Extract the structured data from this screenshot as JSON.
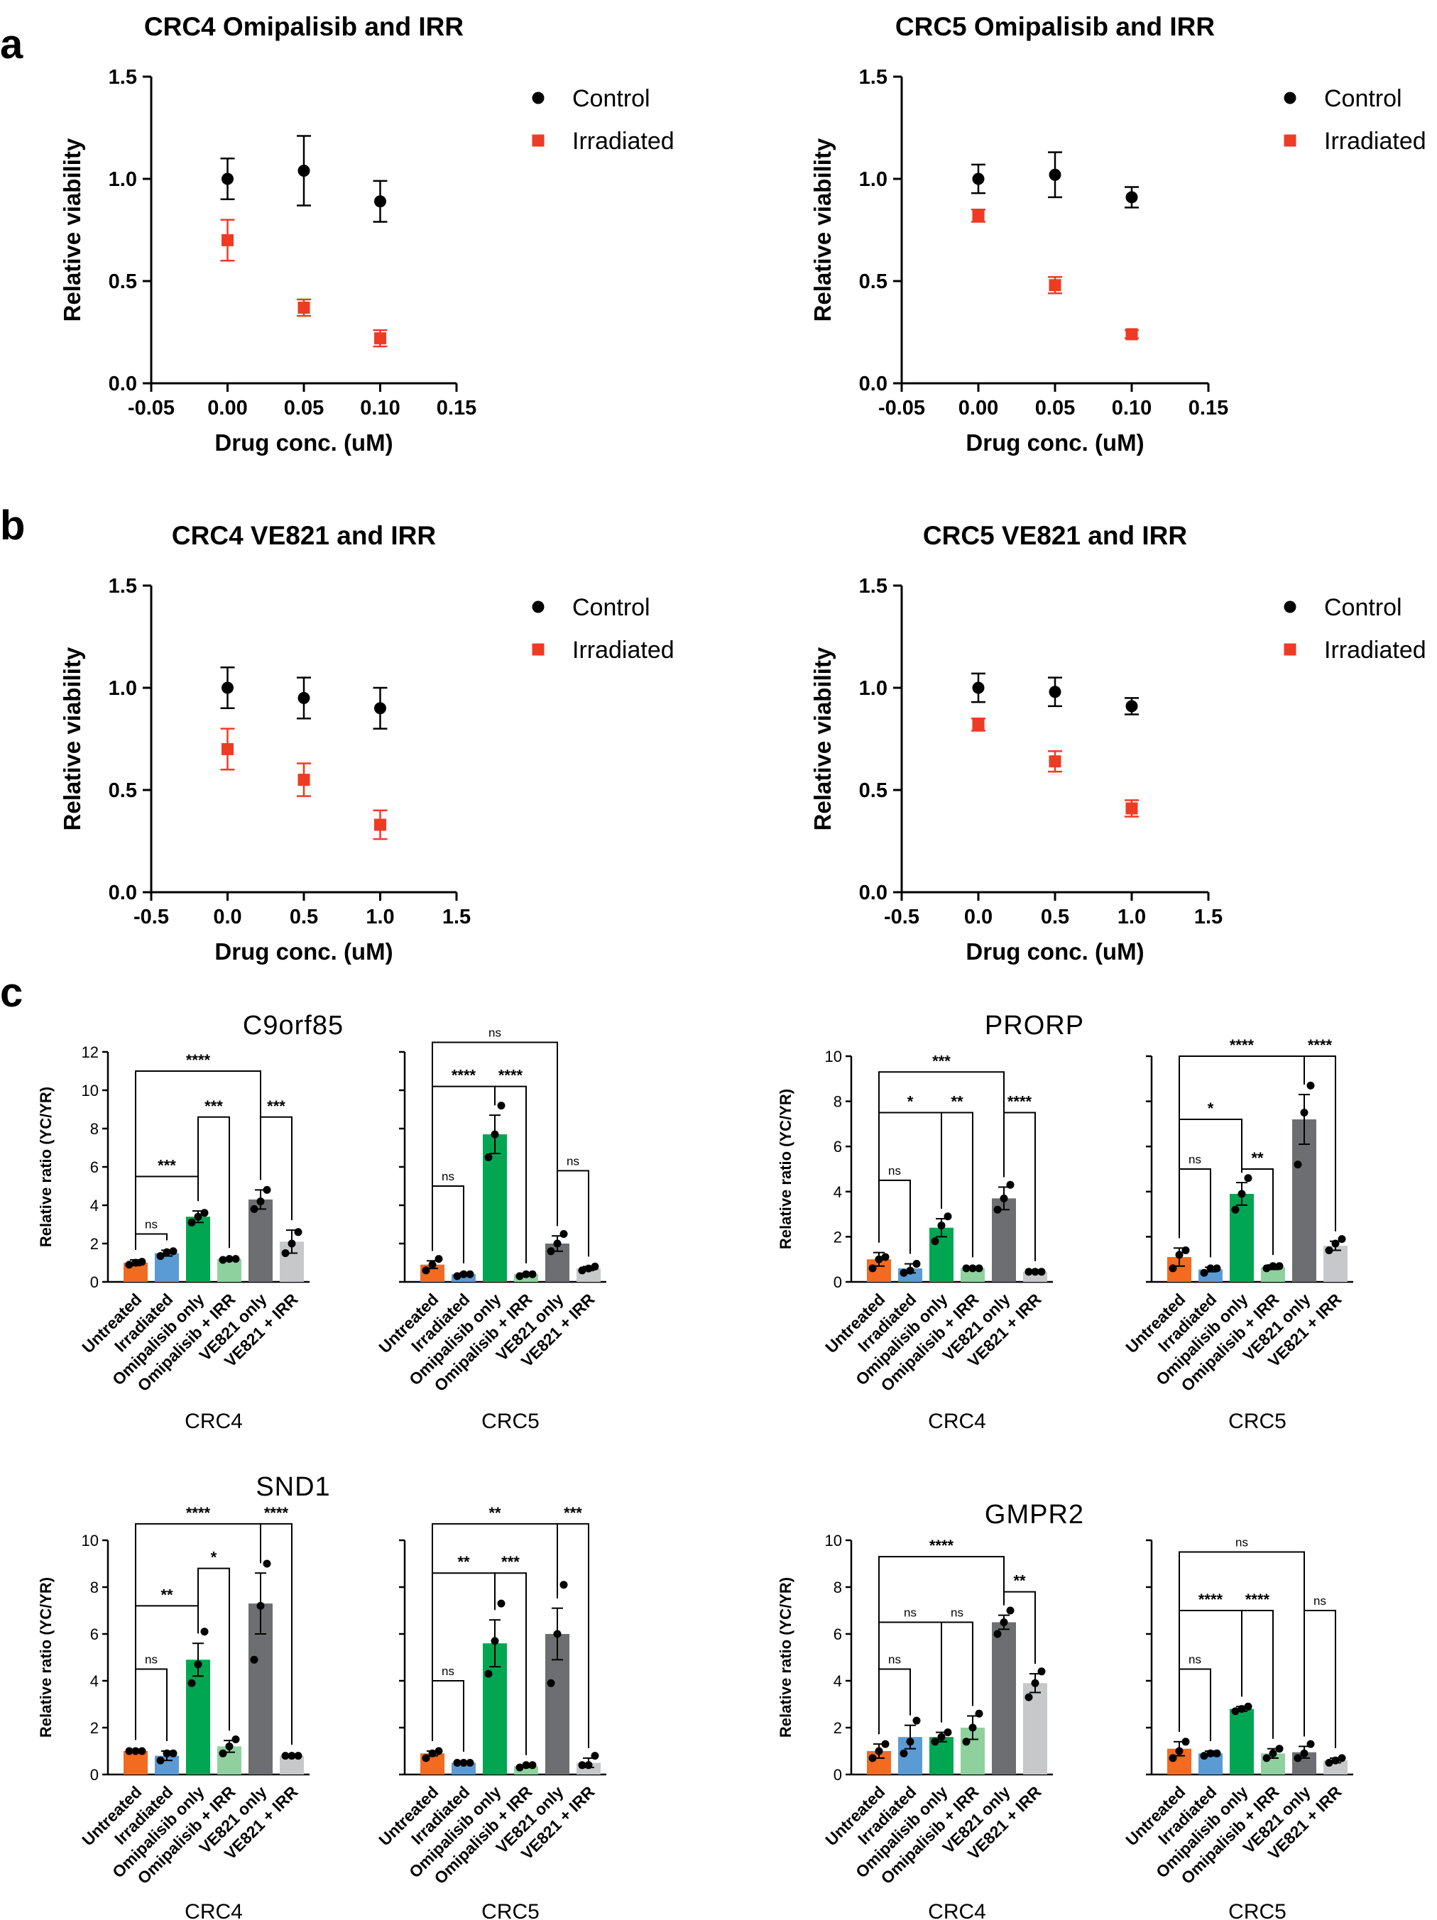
{
  "panel_labels": [
    "a",
    "b",
    "c"
  ],
  "colors": {
    "control": "#000000",
    "irradiated": "#ee3b24",
    "Untreated": "#f26b21",
    "Irradiated": "#5b9bd5",
    "Omipalisib only": "#00a651",
    "Omipalisib + IRR": "#8fd19e",
    "VE821 only": "#6d6e71",
    "VE821 + IRR": "#c7c8ca"
  },
  "chart_data": [
    {
      "id": "crc4-omi",
      "type": "scatter",
      "panel": "a",
      "title": "CRC4 Omipalisib and IRR",
      "xlabel": "Drug conc. (uM)",
      "ylabel": "Relative viability",
      "xlim": [
        -0.05,
        0.15
      ],
      "ylim": [
        0,
        1.5
      ],
      "xticks": [
        "-0.05",
        "0.00",
        "0.05",
        "0.10",
        "0.15"
      ],
      "yticks": [
        "0.0",
        "0.5",
        "1.0",
        "1.5"
      ],
      "legend": "top-right",
      "series": [
        {
          "name": "Control",
          "x": [
            0,
            0.05,
            0.1
          ],
          "y": [
            1.0,
            1.04,
            0.89
          ],
          "err": [
            0.1,
            0.17,
            0.1
          ]
        },
        {
          "name": "Irradiated",
          "x": [
            0,
            0.05,
            0.1
          ],
          "y": [
            0.7,
            0.37,
            0.22
          ],
          "err": [
            0.1,
            0.04,
            0.04
          ]
        }
      ]
    },
    {
      "id": "crc5-omi",
      "type": "scatter",
      "panel": "a",
      "title": "CRC5 Omipalisib and IRR",
      "xlabel": "Drug conc. (uM)",
      "ylabel": "Relative viability",
      "xlim": [
        -0.05,
        0.15
      ],
      "ylim": [
        0,
        1.5
      ],
      "xticks": [
        "-0.05",
        "0.00",
        "0.05",
        "0.10",
        "0.15"
      ],
      "yticks": [
        "0.0",
        "0.5",
        "1.0",
        "1.5"
      ],
      "legend": "top-right",
      "series": [
        {
          "name": "Control",
          "x": [
            0,
            0.05,
            0.1
          ],
          "y": [
            1.0,
            1.02,
            0.91
          ],
          "err": [
            0.07,
            0.11,
            0.05
          ]
        },
        {
          "name": "Irradiated",
          "x": [
            0,
            0.05,
            0.1
          ],
          "y": [
            0.82,
            0.48,
            0.24
          ],
          "err": [
            0.03,
            0.04,
            0.02
          ]
        }
      ]
    },
    {
      "id": "crc4-ve",
      "type": "scatter",
      "panel": "b",
      "title": "CRC4 VE821 and IRR",
      "xlabel": "Drug conc. (uM)",
      "ylabel": "Relative viability",
      "xlim": [
        -0.5,
        1.5
      ],
      "ylim": [
        0,
        1.5
      ],
      "xticks": [
        "-0.5",
        "0.0",
        "0.5",
        "1.0",
        "1.5"
      ],
      "yticks": [
        "0.0",
        "0.5",
        "1.0",
        "1.5"
      ],
      "legend": "top-right",
      "series": [
        {
          "name": "Control",
          "x": [
            0,
            0.5,
            1.0
          ],
          "y": [
            1.0,
            0.95,
            0.9
          ],
          "err": [
            0.1,
            0.1,
            0.1
          ]
        },
        {
          "name": "Irradiated",
          "x": [
            0,
            0.5,
            1.0
          ],
          "y": [
            0.7,
            0.55,
            0.33
          ],
          "err": [
            0.1,
            0.08,
            0.07
          ]
        }
      ]
    },
    {
      "id": "crc5-ve",
      "type": "scatter",
      "panel": "b",
      "title": "CRC5 VE821 and IRR",
      "xlabel": "Drug conc. (uM)",
      "ylabel": "Relative viability",
      "xlim": [
        -0.5,
        1.5
      ],
      "ylim": [
        0,
        1.5
      ],
      "xticks": [
        "-0.5",
        "0.0",
        "0.5",
        "1.0",
        "1.5"
      ],
      "yticks": [
        "0.0",
        "0.5",
        "1.0",
        "1.5"
      ],
      "legend": "top-right",
      "series": [
        {
          "name": "Control",
          "x": [
            0,
            0.5,
            1.0
          ],
          "y": [
            1.0,
            0.98,
            0.91
          ],
          "err": [
            0.07,
            0.07,
            0.04
          ]
        },
        {
          "name": "Irradiated",
          "x": [
            0,
            0.5,
            1.0
          ],
          "y": [
            0.82,
            0.64,
            0.41
          ],
          "err": [
            0.03,
            0.05,
            0.04
          ]
        }
      ]
    }
  ],
  "bar_charts": [
    {
      "id": "c9orf85",
      "type": "bar",
      "panel": "c",
      "title": "C9orf85",
      "ylabel": "Relative ratio (YC/YR)",
      "categories": [
        "Untreated",
        "Irradiated",
        "Omipalisib only",
        "Omipalisib + IRR",
        "VE821 only",
        "VE821 + IRR"
      ],
      "groups": [
        {
          "name": "CRC4",
          "ylim": [
            0,
            12
          ],
          "yticks": [
            "0",
            "2",
            "4",
            "6",
            "8",
            "10",
            "12"
          ],
          "values": [
            1.0,
            1.5,
            3.4,
            1.2,
            4.3,
            2.1
          ],
          "err": [
            0.15,
            0.15,
            0.3,
            0.05,
            0.5,
            0.6
          ],
          "points": [
            [
              0.9,
              1.0,
              1.05
            ],
            [
              1.35,
              1.55,
              1.6
            ],
            [
              3.1,
              3.4,
              3.6
            ],
            [
              1.15,
              1.2,
              1.2
            ],
            [
              3.8,
              4.2,
              4.8
            ],
            [
              1.5,
              2.0,
              2.6
            ]
          ],
          "brackets": [
            {
              "a": 0,
              "b": 1,
              "y": 2.5,
              "label": "ns"
            },
            {
              "a": 0,
              "b": 2,
              "y": 5.5,
              "label": "***"
            },
            {
              "a": 2,
              "b": 3,
              "y": 8.6,
              "label": "***"
            },
            {
              "a": 4,
              "b": 5,
              "y": 8.6,
              "label": "***"
            },
            {
              "a": 0,
              "b": 4,
              "y": 11.0,
              "label": "****"
            }
          ]
        },
        {
          "name": "CRC5",
          "ylim": [
            0,
            12
          ],
          "yticks": [],
          "values": [
            0.9,
            0.4,
            7.7,
            0.4,
            2.0,
            0.7
          ],
          "err": [
            0.2,
            0.05,
            1.0,
            0.05,
            0.4,
            0.1
          ],
          "points": [
            [
              0.6,
              0.9,
              1.2
            ],
            [
              0.3,
              0.4,
              0.4
            ],
            [
              6.5,
              7.7,
              9.2
            ],
            [
              0.3,
              0.4,
              0.4
            ],
            [
              1.6,
              2.0,
              2.5
            ],
            [
              0.6,
              0.7,
              0.8
            ]
          ],
          "brackets": [
            {
              "a": 0,
              "b": 1,
              "y": 5.0,
              "label": "ns"
            },
            {
              "a": 0,
              "b": 2,
              "y": 10.2,
              "label": "****"
            },
            {
              "a": 2,
              "b": 3,
              "y": 10.2,
              "label": "****"
            },
            {
              "a": 4,
              "b": 5,
              "y": 5.8,
              "label": "ns"
            },
            {
              "a": 0,
              "b": 4,
              "y": 12.5,
              "label": "ns"
            }
          ]
        }
      ]
    },
    {
      "id": "prorp",
      "type": "bar",
      "panel": "c",
      "title": "PRORP",
      "ylabel": "Relative ratio (YC/YR)",
      "categories": [
        "Untreated",
        "Irradiated",
        "Omipalisib only",
        "Omipalisib + IRR",
        "VE821 only",
        "VE821 + IRR"
      ],
      "groups": [
        {
          "name": "CRC4",
          "ylim": [
            0,
            10
          ],
          "yticks": [
            "0",
            "2",
            "4",
            "6",
            "8",
            "10"
          ],
          "values": [
            1.0,
            0.6,
            2.4,
            0.6,
            3.7,
            0.45
          ],
          "err": [
            0.3,
            0.2,
            0.4,
            0.05,
            0.5,
            0.03
          ],
          "points": [
            [
              0.6,
              1.0,
              1.1
            ],
            [
              0.4,
              0.5,
              0.8
            ],
            [
              1.8,
              2.5,
              2.9
            ],
            [
              0.6,
              0.6,
              0.6
            ],
            [
              3.2,
              3.7,
              4.3
            ],
            [
              0.45,
              0.45,
              0.45
            ]
          ],
          "brackets": [
            {
              "a": 0,
              "b": 1,
              "y": 4.5,
              "label": "ns"
            },
            {
              "a": 0,
              "b": 2,
              "y": 7.5,
              "label": "*"
            },
            {
              "a": 2,
              "b": 3,
              "y": 7.5,
              "label": "**"
            },
            {
              "a": 4,
              "b": 5,
              "y": 7.5,
              "label": "****"
            },
            {
              "a": 0,
              "b": 4,
              "y": 9.3,
              "label": "***"
            }
          ]
        },
        {
          "name": "CRC5",
          "ylim": [
            0,
            10
          ],
          "yticks": [],
          "values": [
            1.1,
            0.55,
            3.9,
            0.65,
            7.2,
            1.6
          ],
          "err": [
            0.4,
            0.1,
            0.5,
            0.1,
            1.1,
            0.2
          ],
          "points": [
            [
              0.6,
              1.2,
              1.4
            ],
            [
              0.4,
              0.6,
              0.6
            ],
            [
              3.2,
              3.9,
              4.6
            ],
            [
              0.6,
              0.7,
              0.7
            ],
            [
              5.2,
              7.5,
              8.7
            ],
            [
              1.4,
              1.7,
              1.9
            ]
          ],
          "brackets": [
            {
              "a": 0,
              "b": 1,
              "y": 5.0,
              "label": "ns"
            },
            {
              "a": 0,
              "b": 2,
              "y": 7.2,
              "label": "*"
            },
            {
              "a": 2,
              "b": 3,
              "y": 5.0,
              "label": "**"
            },
            {
              "a": 0,
              "b": 4,
              "y": 10.0,
              "label": "****"
            },
            {
              "a": 4,
              "b": 5,
              "y": 10.0,
              "label": "****"
            }
          ]
        }
      ]
    },
    {
      "id": "snd1",
      "type": "bar",
      "panel": "c",
      "title": "SND1",
      "ylabel": "Relative ratio (YC/YR)",
      "categories": [
        "Untreated",
        "Irradiated",
        "Omipalisib only",
        "Omipalisib + IRR",
        "VE821 only",
        "VE821 + IRR"
      ],
      "groups": [
        {
          "name": "CRC4",
          "ylim": [
            0,
            10
          ],
          "yticks": [
            "0",
            "2",
            "4",
            "6",
            "8",
            "10"
          ],
          "values": [
            1.0,
            0.8,
            4.9,
            1.2,
            7.3,
            0.8
          ],
          "err": [
            0.05,
            0.2,
            0.7,
            0.25,
            1.3,
            0.05
          ],
          "points": [
            [
              1.0,
              1.0,
              1.0
            ],
            [
              0.6,
              0.9,
              0.9
            ],
            [
              3.9,
              4.7,
              6.1
            ],
            [
              0.9,
              1.2,
              1.5
            ],
            [
              4.9,
              7.2,
              9.0
            ],
            [
              0.8,
              0.8,
              0.8
            ]
          ],
          "brackets": [
            {
              "a": 0,
              "b": 1,
              "y": 4.5,
              "label": "ns"
            },
            {
              "a": 0,
              "b": 2,
              "y": 7.2,
              "label": "**"
            },
            {
              "a": 2,
              "b": 3,
              "y": 8.8,
              "label": "*"
            },
            {
              "a": 0,
              "b": 4,
              "y": 10.7,
              "label": "****"
            },
            {
              "a": 4,
              "b": 5,
              "y": 10.7,
              "label": "****"
            }
          ]
        },
        {
          "name": "CRC5",
          "ylim": [
            0,
            10
          ],
          "yticks": [],
          "values": [
            0.9,
            0.5,
            5.6,
            0.35,
            6.0,
            0.5
          ],
          "err": [
            0.1,
            0.05,
            1.0,
            0.05,
            1.1,
            0.2
          ],
          "points": [
            [
              0.7,
              0.9,
              1.0
            ],
            [
              0.5,
              0.5,
              0.5
            ],
            [
              4.3,
              5.7,
              7.3
            ],
            [
              0.3,
              0.4,
              0.4
            ],
            [
              3.9,
              6.0,
              8.1
            ],
            [
              0.4,
              0.4,
              0.8
            ]
          ],
          "brackets": [
            {
              "a": 0,
              "b": 1,
              "y": 4.0,
              "label": "ns"
            },
            {
              "a": 0,
              "b": 2,
              "y": 8.6,
              "label": "**"
            },
            {
              "a": 2,
              "b": 3,
              "y": 8.6,
              "label": "***"
            },
            {
              "a": 0,
              "b": 4,
              "y": 10.7,
              "label": "**"
            },
            {
              "a": 4,
              "b": 5,
              "y": 10.7,
              "label": "***"
            }
          ]
        }
      ]
    },
    {
      "id": "gmpr2",
      "type": "bar",
      "panel": "c",
      "title": "GMPR2",
      "ylabel": "Relative ratio (YC/YR)",
      "categories": [
        "Untreated",
        "Irradiated",
        "Omipalisib only",
        "Omipalisib + IRR",
        "VE821 only",
        "VE821 + IRR"
      ],
      "groups": [
        {
          "name": "CRC4",
          "ylim": [
            0,
            10
          ],
          "yticks": [
            "0",
            "2",
            "4",
            "6",
            "8",
            "10"
          ],
          "values": [
            1.0,
            1.6,
            1.6,
            2.0,
            6.5,
            3.9
          ],
          "err": [
            0.3,
            0.5,
            0.2,
            0.5,
            0.3,
            0.4
          ],
          "points": [
            [
              0.7,
              1.0,
              1.3
            ],
            [
              0.9,
              1.4,
              2.3
            ],
            [
              1.4,
              1.6,
              1.8
            ],
            [
              1.4,
              2.0,
              2.6
            ],
            [
              6.0,
              6.5,
              7.0
            ],
            [
              3.3,
              3.9,
              4.4
            ]
          ],
          "brackets": [
            {
              "a": 0,
              "b": 1,
              "y": 4.5,
              "label": "ns"
            },
            {
              "a": 0,
              "b": 2,
              "y": 6.5,
              "label": "ns"
            },
            {
              "a": 2,
              "b": 3,
              "y": 6.5,
              "label": "ns"
            },
            {
              "a": 4,
              "b": 5,
              "y": 7.8,
              "label": "**"
            },
            {
              "a": 0,
              "b": 4,
              "y": 9.3,
              "label": "****"
            }
          ]
        },
        {
          "name": "CRC5",
          "ylim": [
            0,
            10
          ],
          "yticks": [],
          "values": [
            1.1,
            0.9,
            2.8,
            0.9,
            0.95,
            0.6
          ],
          "err": [
            0.3,
            0.1,
            0.1,
            0.2,
            0.25,
            0.1
          ],
          "points": [
            [
              0.7,
              1.0,
              1.4
            ],
            [
              0.8,
              0.9,
              0.9
            ],
            [
              2.7,
              2.8,
              2.9
            ],
            [
              0.7,
              0.9,
              1.1
            ],
            [
              0.7,
              0.9,
              1.3
            ],
            [
              0.5,
              0.6,
              0.7
            ]
          ],
          "brackets": [
            {
              "a": 0,
              "b": 1,
              "y": 4.5,
              "label": "ns"
            },
            {
              "a": 0,
              "b": 2,
              "y": 7.0,
              "label": "****"
            },
            {
              "a": 2,
              "b": 3,
              "y": 7.0,
              "label": "****"
            },
            {
              "a": 4,
              "b": 5,
              "y": 7.0,
              "label": "ns"
            },
            {
              "a": 0,
              "b": 4,
              "y": 9.5,
              "label": "ns"
            }
          ]
        }
      ]
    }
  ]
}
